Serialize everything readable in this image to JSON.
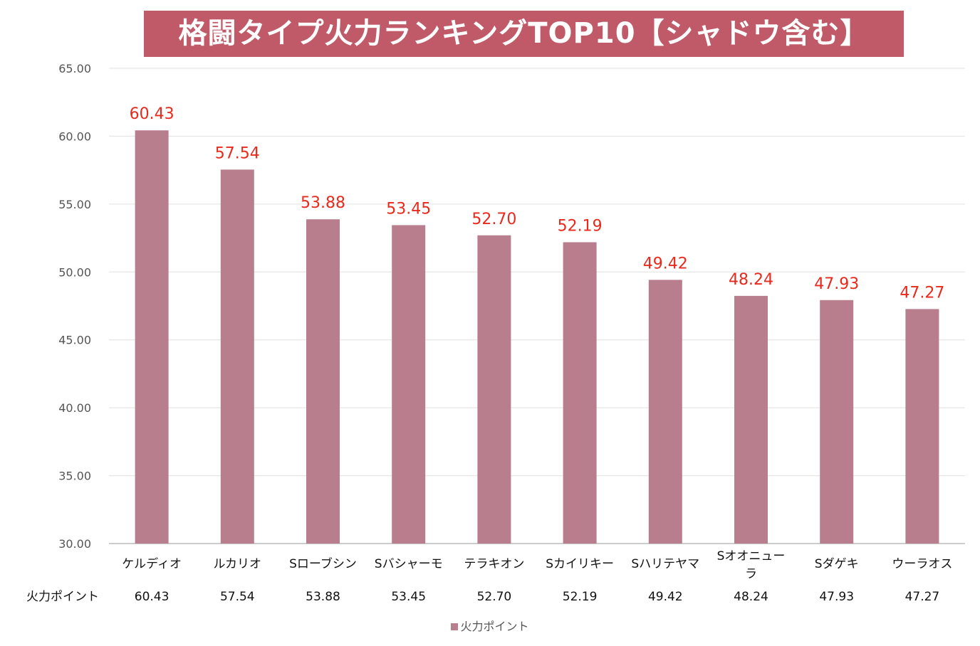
{
  "chart_data": {
    "type": "bar",
    "title": "格闘タイプ火力ランキングTOP10【シャドウ含む】",
    "categories": [
      "ケルディオ",
      "ルカリオ",
      "Sローブシン",
      "Sバシャーモ",
      "テラキオン",
      "Sカイリキー",
      "Sハリテヤマ",
      "Sオオニューラ",
      "Sダゲキ",
      "ウーラオス"
    ],
    "series": [
      {
        "name": "火力ポイント",
        "values": [
          60.43,
          57.54,
          53.88,
          53.45,
          52.7,
          52.19,
          49.42,
          48.24,
          47.93,
          47.27
        ]
      }
    ],
    "ylim": [
      30,
      65
    ],
    "yticks": [
      "30.00",
      "35.00",
      "40.00",
      "45.00",
      "50.00",
      "55.00",
      "60.00",
      "65.00"
    ],
    "xlabel": "",
    "ylabel": "",
    "grid": true,
    "legend": "bottom",
    "data_table_label": "火力ポイント",
    "bar_color": "#b97e8e",
    "label_color": "#e8291c",
    "title_bg": "#c05a68"
  }
}
